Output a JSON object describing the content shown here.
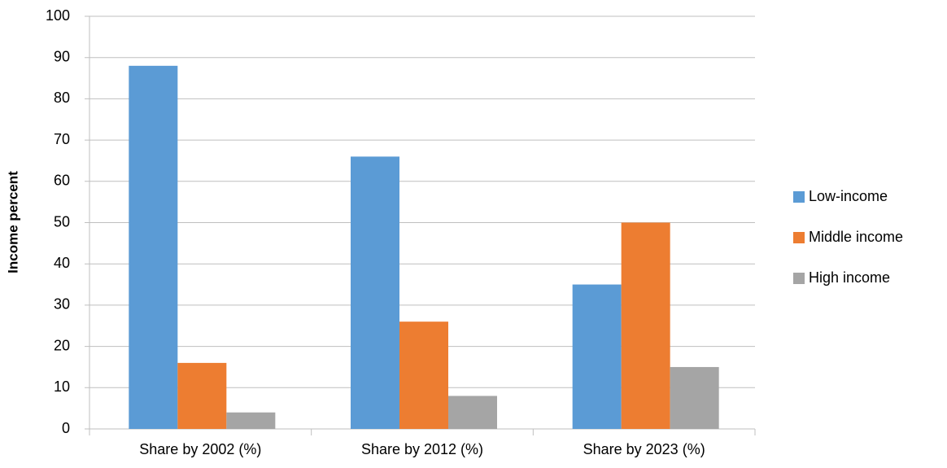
{
  "chart_data": {
    "type": "bar",
    "y_label": "Income percent",
    "categories": [
      "Share by 2002 (%)",
      "Share by 2012 (%)",
      "Share by 2023 (%)"
    ],
    "series": [
      {
        "name": "Low-income",
        "color": "#5b9bd5",
        "values": [
          88,
          66,
          35
        ]
      },
      {
        "name": "Middle income",
        "color": "#ed7d31",
        "values": [
          16,
          26,
          50
        ]
      },
      {
        "name": "High income",
        "color": "#a5a5a5",
        "values": [
          4,
          8,
          15
        ]
      }
    ],
    "ylim": [
      0,
      100
    ],
    "yticks": [
      0,
      10,
      20,
      30,
      40,
      50,
      60,
      70,
      80,
      90,
      100
    ],
    "grid": true,
    "legend": "right"
  }
}
